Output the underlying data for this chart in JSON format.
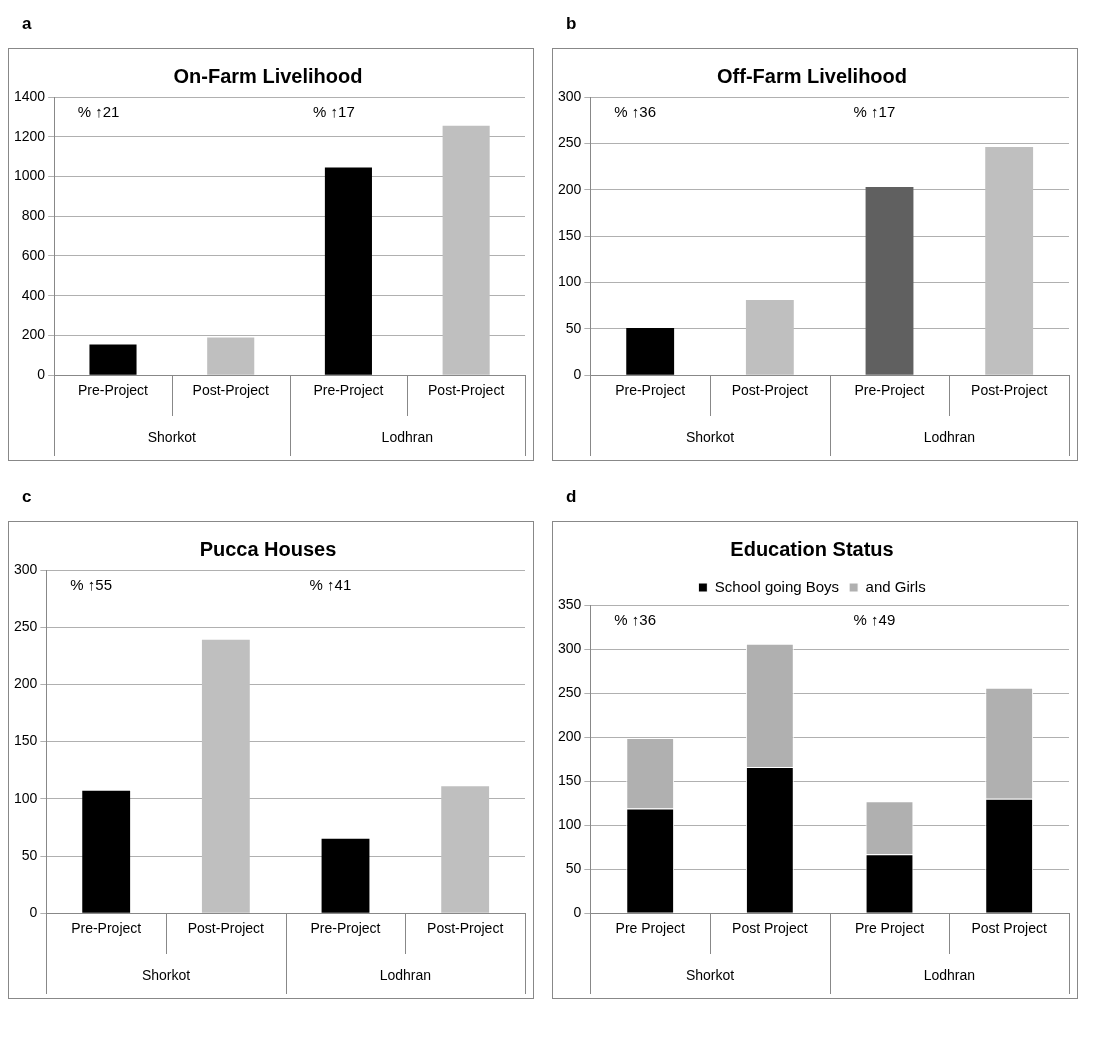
{
  "chart_data": [
    {
      "type": "bar",
      "title": "On-Farm Livelihood",
      "categories": [
        "Pre-Project",
        "Post-Project",
        "Pre-Project",
        "Post-Project"
      ],
      "values": [
        155,
        190,
        1045,
        1255
      ],
      "colors": [
        "#000000",
        "#bfbfbf",
        "#000000",
        "#bfbfbf"
      ],
      "ylim": [
        0,
        1400
      ],
      "yticks": [
        0,
        200,
        400,
        600,
        800,
        1000,
        1200,
        1400
      ],
      "grid": "y",
      "legend": false,
      "annotations": [
        "a",
        "Shorkot",
        "Lodhran",
        "% ↑21",
        "% ↑17"
      ]
    },
    {
      "type": "bar",
      "title": "Off-Farm Livelihood",
      "categories": [
        "Pre-Project",
        "Post-Project",
        "Pre-Project",
        "Post-Project"
      ],
      "values": [
        51,
        81,
        203,
        246
      ],
      "colors": [
        "#000000",
        "#bfbfbf",
        "#606060",
        "#bfbfbf"
      ],
      "ylim": [
        0,
        300
      ],
      "yticks": [
        0,
        50,
        100,
        150,
        200,
        250,
        300
      ],
      "grid": "y",
      "legend": false,
      "annotations": [
        "b",
        "Shorkot",
        "Lodhran",
        "% ↑36",
        "% ↑17"
      ]
    },
    {
      "type": "bar",
      "title": "Pucca Houses",
      "categories": [
        "Pre-Project",
        "Post-Project",
        "Pre-Project",
        "Post-Project"
      ],
      "values": [
        107,
        239,
        65,
        111
      ],
      "colors": [
        "#000000",
        "#bfbfbf",
        "#000000",
        "#bfbfbf"
      ],
      "ylim": [
        0,
        300
      ],
      "yticks": [
        0,
        50,
        100,
        150,
        200,
        250,
        300
      ],
      "grid": "y",
      "legend": false,
      "annotations": [
        "c",
        "Shorkot",
        "Lodhran",
        "% ↑55",
        "% ↑41"
      ]
    },
    {
      "type": "bar",
      "title": "Education Status",
      "categories": [
        "Pre Project",
        "Post Project",
        "Pre Project",
        "Post Project"
      ],
      "stacked": true,
      "series": [
        {
          "name": "School going Boys",
          "color": "#000000",
          "values": [
            119,
            166,
            67,
            130
          ]
        },
        {
          "name": "and Girls",
          "color": "#b0b0b0",
          "values": [
            80,
            140,
            60,
            126
          ]
        }
      ],
      "ylim": [
        0,
        350
      ],
      "yticks": [
        0,
        50,
        100,
        150,
        200,
        250,
        300,
        350
      ],
      "grid": "y",
      "legend": "top",
      "annotations": [
        "d",
        "Shorkot",
        "Lodhran",
        "% ↑36",
        "% ↑49"
      ]
    }
  ]
}
